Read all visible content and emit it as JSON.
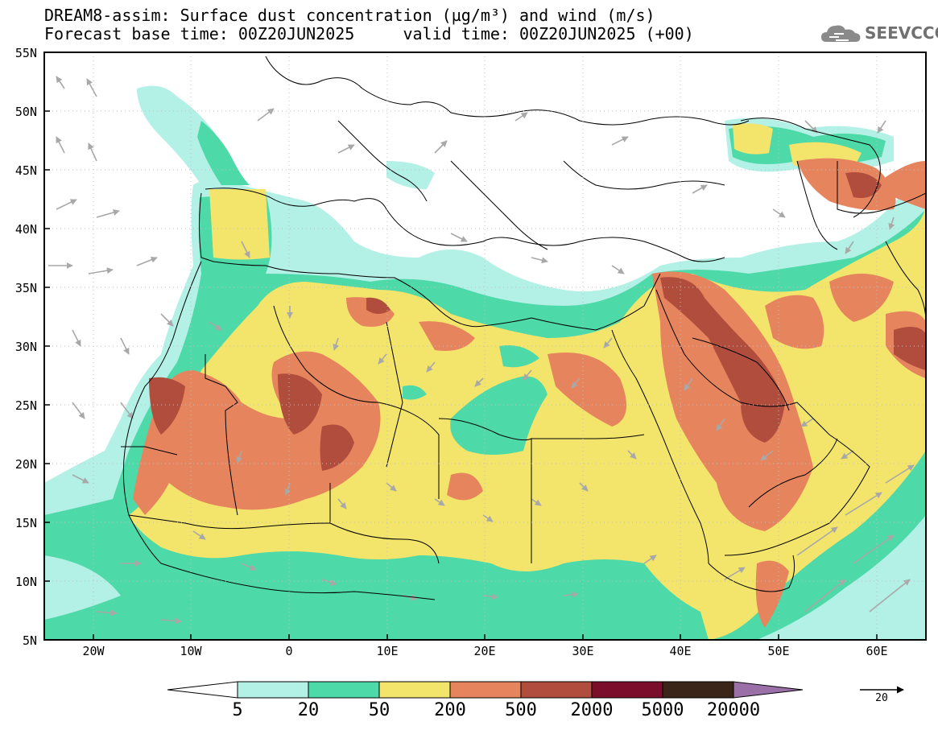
{
  "title_line1": "DREAM8-assim: Surface dust concentration (µg/m³) and wind (m/s)",
  "title_line2": "Forecast base time: 00Z20JUN2025     valid time: 00Z20JUN2025 (+00)",
  "logo_text": "SEEVCCC",
  "map": {
    "lon_range": [
      -25,
      65
    ],
    "lat_range": [
      5,
      55
    ],
    "lat_labels": [
      "55N",
      "50N",
      "45N",
      "40N",
      "35N",
      "30N",
      "25N",
      "20N",
      "15N",
      "10N",
      "5N"
    ],
    "lat_values": [
      55,
      50,
      45,
      40,
      35,
      30,
      25,
      20,
      15,
      10,
      5
    ],
    "lon_labels": [
      "20W",
      "10W",
      "0",
      "10E",
      "20E",
      "30E",
      "40E",
      "50E",
      "60E"
    ],
    "lon_values": [
      -20,
      -10,
      0,
      10,
      20,
      30,
      40,
      50,
      60
    ],
    "concentration_units": "µg/m³",
    "wind_units": "m/s"
  },
  "colorbar": {
    "levels": [
      "5",
      "20",
      "50",
      "200",
      "500",
      "2000",
      "5000",
      "20000"
    ],
    "colors": [
      "#b3f0e6",
      "#4ed9a8",
      "#f3e46c",
      "#e6855d",
      "#b14d3c",
      "#7a0e2b",
      "#3a2518",
      "#9b6fa8"
    ]
  },
  "wind_reference": {
    "value": "20"
  }
}
